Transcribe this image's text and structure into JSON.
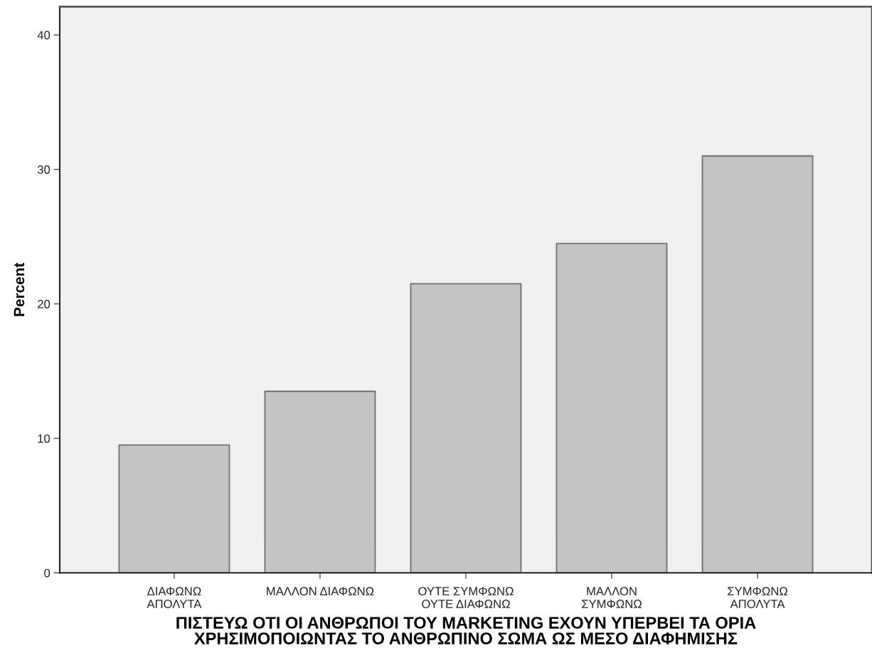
{
  "chart_data": {
    "type": "bar",
    "xlabel": "ΠΙΣΤΕΥΩ ΟΤΙ ΟΙ ΑΝΘΡΩΠΟΙ ΤΟΥ MARKETING ΕΧΟΥΝ ΥΠΕΡΒΕΙ ΤΑ ΟΡΙΑ\nΧΡΗΣΙΜΟΠΟΙΩΝΤΑΣ ΤΟ ΑΝΘΡΩΠΙΝΟ ΣΩΜΑ ΩΣ ΜΕΣΟ ΔΙΑΦΗΜΙΣΗΣ",
    "ylabel": "Percent",
    "categories": [
      "ΔΙΑΦΩΝΩ\nΑΠΟΛΥΤΑ",
      "ΜΑΛΛΟΝ ΔΙΑΦΩΝΩ",
      "ΟΥΤΕ ΣΥΜΦΩΝΩ\nΟΥΤΕ ΔΙΑΦΩΝΩ",
      "ΜΑΛΛΟΝ\nΣΥΜΦΩΝΩ",
      "ΣΥΜΦΩΝΩ\nΑΠΟΛΥΤΑ"
    ],
    "values": [
      9.5,
      13.5,
      21.5,
      24.5,
      31.0
    ],
    "color": "#c4c4c4",
    "ylim": [
      0,
      42.1
    ],
    "yticks": [
      0,
      10,
      20,
      30,
      40
    ],
    "grid": false,
    "legend": false
  }
}
